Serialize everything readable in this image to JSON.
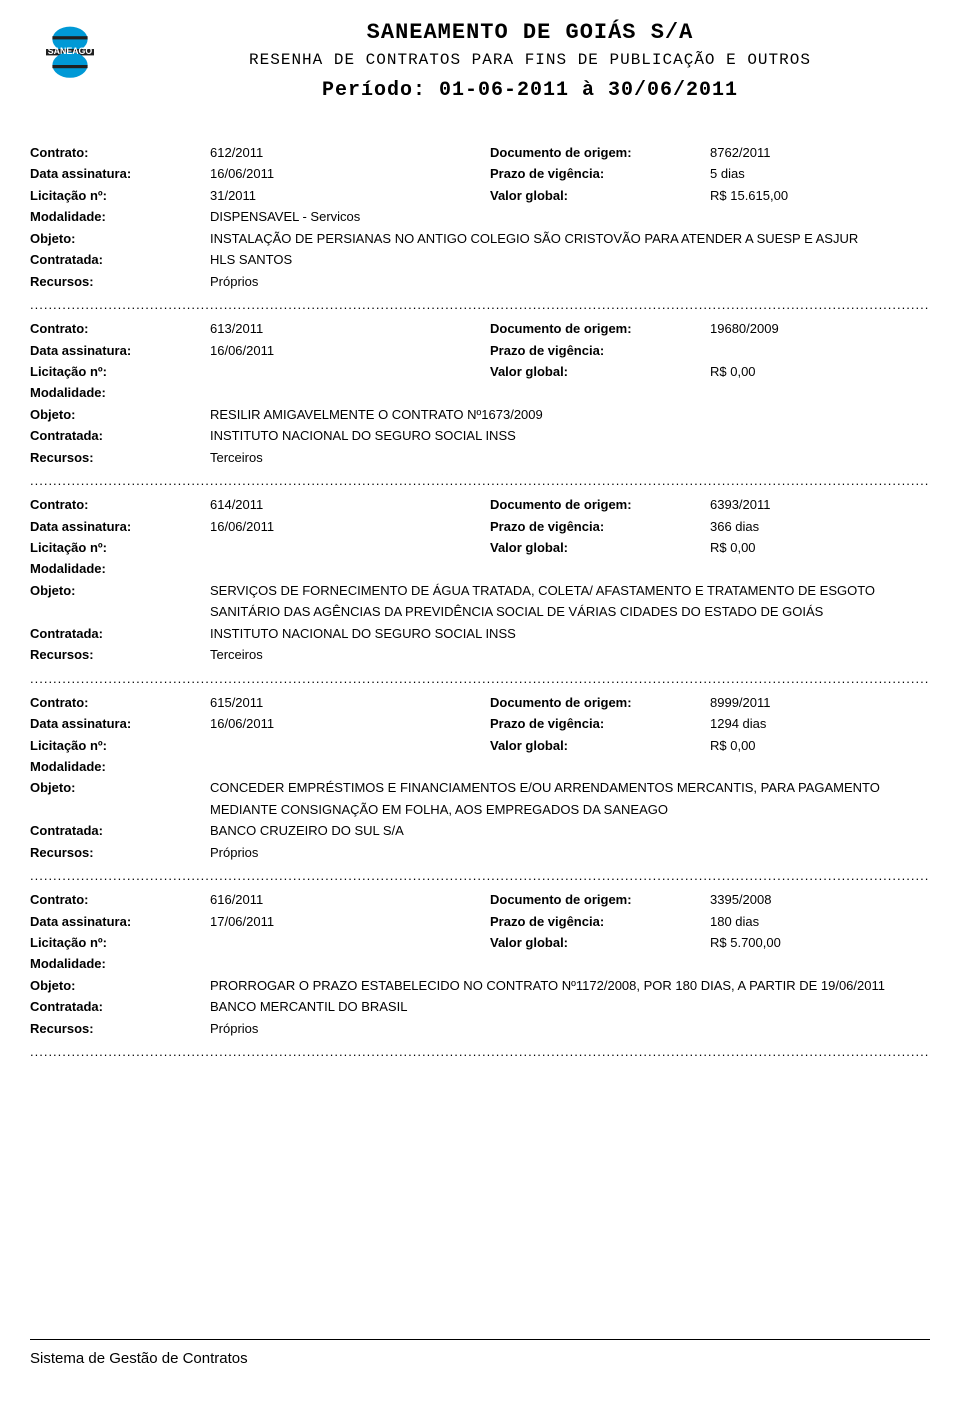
{
  "header": {
    "logo_label": "SANEAGO",
    "logo_colors": {
      "top": "#0099d6",
      "bottom": "#0099d6",
      "bar": "#202020"
    },
    "title": "SANEAMENTO DE GOIÁS S/A",
    "subtitle": "RESENHA DE CONTRATOS PARA FINS DE PUBLICAÇÃO E OUTROS",
    "periodo": "Período: 01-06-2011 à 30/06/2011"
  },
  "labels": {
    "contrato": "Contrato:",
    "documento_origem": "Documento de origem:",
    "data_assinatura": "Data assinatura:",
    "prazo_vigencia": "Prazo de vigência:",
    "licitacao": "Licitação nº:",
    "valor_global": "Valor global:",
    "modalidade": "Modalidade:",
    "objeto": "Objeto:",
    "contratada": "Contratada:",
    "recursos": "Recursos:"
  },
  "contracts": [
    {
      "contrato": "612/2011",
      "documento_origem": "8762/2011",
      "data_assinatura": "16/06/2011",
      "prazo_vigencia": "5 dias",
      "licitacao": "31/2011",
      "valor_global": "R$ 15.615,00",
      "modalidade": "DISPENSAVEL - Servicos",
      "objeto": "INSTALAÇÃO DE PERSIANAS NO ANTIGO COLEGIO SÃO CRISTOVÃO PARA ATENDER A SUESP E ASJUR",
      "contratada": "HLS SANTOS",
      "recursos": "Próprios"
    },
    {
      "contrato": "613/2011",
      "documento_origem": "19680/2009",
      "data_assinatura": "16/06/2011",
      "prazo_vigencia": "",
      "licitacao": "",
      "valor_global": "R$ 0,00",
      "modalidade": "",
      "objeto": "RESILIR AMIGAVELMENTE O CONTRATO Nº1673/2009",
      "contratada": "INSTITUTO NACIONAL DO SEGURO SOCIAL INSS",
      "recursos": "Terceiros"
    },
    {
      "contrato": "614/2011",
      "documento_origem": "6393/2011",
      "data_assinatura": "16/06/2011",
      "prazo_vigencia": "366 dias",
      "licitacao": "",
      "valor_global": "R$ 0,00",
      "modalidade": "",
      "objeto": "SERVIÇOS DE FORNECIMENTO DE ÁGUA TRATADA, COLETA/ AFASTAMENTO E TRATAMENTO DE ESGOTO SANITÁRIO DAS AGÊNCIAS DA PREVIDÊNCIA SOCIAL DE VÁRIAS CIDADES DO ESTADO DE GOIÁS",
      "contratada": "INSTITUTO NACIONAL DO SEGURO SOCIAL INSS",
      "recursos": "Terceiros"
    },
    {
      "contrato": "615/2011",
      "documento_origem": "8999/2011",
      "data_assinatura": "16/06/2011",
      "prazo_vigencia": "1294 dias",
      "licitacao": "",
      "valor_global": "R$ 0,00",
      "modalidade": "",
      "objeto": "CONCEDER EMPRÉSTIMOS E FINANCIAMENTOS E/OU ARRENDAMENTOS MERCANTIS, PARA PAGAMENTO MEDIANTE CONSIGNAÇÃO EM FOLHA, AOS EMPREGADOS DA SANEAGO",
      "contratada": "BANCO CRUZEIRO DO SUL S/A",
      "recursos": "Próprios"
    },
    {
      "contrato": "616/2011",
      "documento_origem": "3395/2008",
      "data_assinatura": "17/06/2011",
      "prazo_vigencia": "180 dias",
      "licitacao": "",
      "valor_global": "R$ 5.700,00",
      "modalidade": "",
      "objeto": "PRORROGAR O PRAZO ESTABELECIDO NO CONTRATO Nº1172/2008, POR 180 DIAS, A PARTIR DE 19/06/2011",
      "contratada": "BANCO MERCANTIL DO BRASIL",
      "recursos": "Próprios"
    }
  ],
  "footer": "Sistema de Gestão de Contratos"
}
